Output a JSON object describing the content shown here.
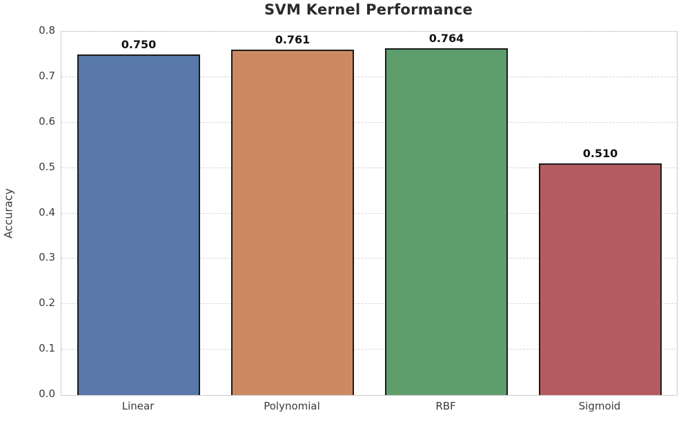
{
  "chart_data": {
    "type": "bar",
    "title": "SVM Kernel Performance",
    "xlabel": "",
    "ylabel": "Accuracy",
    "categories": [
      "Linear",
      "Polynomial",
      "RBF",
      "Sigmoid"
    ],
    "values": [
      0.75,
      0.761,
      0.764,
      0.51
    ],
    "value_labels": [
      "0.750",
      "0.761",
      "0.764",
      "0.510"
    ],
    "bar_colors": [
      "#5778a9",
      "#cd8a62",
      "#5d9e6c",
      "#b55c60"
    ],
    "bar_edge_color": "#1a1a1a",
    "ylim": [
      0.0,
      0.8
    ],
    "yticks": [
      0.0,
      0.1,
      0.2,
      0.3,
      0.4,
      0.5,
      0.6,
      0.7,
      0.8
    ],
    "ytick_labels": [
      "0.0",
      "0.1",
      "0.2",
      "0.3",
      "0.4",
      "0.5",
      "0.6",
      "0.7",
      "0.8"
    ],
    "grid": "horizontal-dashed",
    "gridline_color": "#d4d4d4",
    "legend": null,
    "background_color": "#ffffff",
    "title_color": "#2b2b2b",
    "tick_label_color": "#3a3a3a"
  }
}
